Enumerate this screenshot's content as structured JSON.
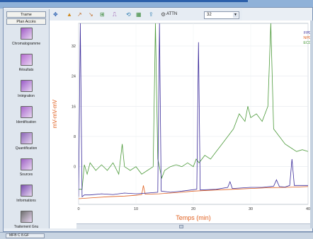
{
  "sidebar": {
    "tabs": [
      "Trame",
      "Plan Accès"
    ],
    "items": [
      {
        "label": "Chromatogramme",
        "icon": "chromatogram-icon",
        "color": "#a05cc6"
      },
      {
        "label": "Résultats",
        "icon": "results-icon",
        "color": "#b56bd1"
      },
      {
        "label": "Intégration",
        "icon": "integration-icon",
        "color": "#9a5ac8"
      },
      {
        "label": "Identification",
        "icon": "identification-icon",
        "color": "#a868cc"
      },
      {
        "label": "Quantification",
        "icon": "quantification-icon",
        "color": "#8a66b6"
      },
      {
        "label": "Sources",
        "icon": "sources-icon",
        "color": "#9d60c4"
      },
      {
        "label": "Informations",
        "icon": "information-icon",
        "color": "#7a4fb0"
      },
      {
        "label": "Traitement Gnu",
        "icon": "clock-icon",
        "color": "#6f6f6f"
      }
    ]
  },
  "toolbar": {
    "attn_label": "ATTN",
    "attn_value": "32",
    "icons": [
      "move-icon",
      "peak-icon",
      "zoom-in-icon",
      "zoom-out-icon",
      "baseline-icon",
      "integrate-icon",
      "reset-icon",
      "overlay-icon",
      "export-icon",
      "settings-icon"
    ]
  },
  "taskbar": {
    "item_label": "MFB C 8.GF"
  },
  "chart_data": {
    "type": "line",
    "xlabel": "Temps (min)",
    "ylabel": "mV-mV-mV",
    "xlim": [
      0,
      40
    ],
    "ylim": [
      -10,
      38
    ],
    "xticks": [
      "0",
      "10",
      "20",
      "30",
      "40"
    ],
    "yticks": [
      "0",
      "8",
      "16",
      "24",
      "32"
    ],
    "grid": true,
    "legend_position": "top-right",
    "series": [
      {
        "name": "FPD",
        "color": "#3a2a9a",
        "points": [
          [
            0,
            -8
          ],
          [
            0.3,
            38
          ],
          [
            0.6,
            -8
          ],
          [
            1,
            -7.5
          ],
          [
            2,
            -7.5
          ],
          [
            4,
            -7.2
          ],
          [
            6,
            -7.4
          ],
          [
            8,
            -7
          ],
          [
            10,
            -7.2
          ],
          [
            12,
            -7
          ],
          [
            13.8,
            -6.8
          ],
          [
            14.1,
            38
          ],
          [
            14.4,
            -6.5
          ],
          [
            16,
            -6.8
          ],
          [
            18,
            -6.5
          ],
          [
            20.6,
            -6
          ],
          [
            20.9,
            33
          ],
          [
            21.2,
            -6.2
          ],
          [
            24,
            -6
          ],
          [
            26,
            -5.5
          ],
          [
            26.4,
            -4
          ],
          [
            26.8,
            -5.8
          ],
          [
            30,
            -5.5
          ],
          [
            32,
            -5.5
          ],
          [
            34,
            -5.2
          ],
          [
            34.5,
            -3.5
          ],
          [
            35,
            -5.3
          ],
          [
            36,
            -5.4
          ],
          [
            36.8,
            -5
          ],
          [
            37.2,
            2
          ],
          [
            37.6,
            -5
          ],
          [
            38.5,
            -5
          ],
          [
            40,
            -5
          ]
        ]
      },
      {
        "name": "NPD",
        "color": "#e06020",
        "points": [
          [
            0,
            -8.5
          ],
          [
            2,
            -8.3
          ],
          [
            5,
            -8
          ],
          [
            8,
            -7.8
          ],
          [
            10,
            -7.6
          ],
          [
            11,
            -7.4
          ],
          [
            11.3,
            -5
          ],
          [
            11.6,
            -7.3
          ],
          [
            14,
            -7.2
          ],
          [
            16,
            -7
          ],
          [
            18,
            -6.8
          ],
          [
            20,
            -6.5
          ],
          [
            24,
            -6.2
          ],
          [
            27,
            -6
          ],
          [
            30,
            -5.8
          ],
          [
            33,
            -5.6
          ],
          [
            36,
            -5.5
          ],
          [
            38,
            -5.4
          ],
          [
            40,
            -5.3
          ]
        ]
      },
      {
        "name": "ECD",
        "color": "#4c9a3a",
        "points": [
          [
            0,
            -6
          ],
          [
            0.6,
            -6
          ],
          [
            1,
            0.5
          ],
          [
            1.5,
            -2
          ],
          [
            2,
            1
          ],
          [
            3,
            -1
          ],
          [
            4,
            0.5
          ],
          [
            5,
            -1
          ],
          [
            6,
            1
          ],
          [
            7,
            -2
          ],
          [
            7.6,
            6
          ],
          [
            8,
            0
          ],
          [
            9,
            -1
          ],
          [
            10,
            0
          ],
          [
            11,
            -2
          ],
          [
            12,
            -1
          ],
          [
            13,
            0
          ],
          [
            13.4,
            38
          ],
          [
            13.8,
            2
          ],
          [
            14.5,
            -3
          ],
          [
            15,
            -1
          ],
          [
            16,
            0
          ],
          [
            17,
            0.5
          ],
          [
            18,
            0
          ],
          [
            19,
            1
          ],
          [
            20,
            0
          ],
          [
            20.5,
            2
          ],
          [
            21,
            1
          ],
          [
            22,
            3
          ],
          [
            23,
            2
          ],
          [
            24,
            4
          ],
          [
            25,
            6
          ],
          [
            26,
            8
          ],
          [
            27,
            10
          ],
          [
            28,
            14
          ],
          [
            29,
            12
          ],
          [
            29.5,
            16
          ],
          [
            30,
            13
          ],
          [
            31,
            14
          ],
          [
            32,
            12
          ],
          [
            33,
            16
          ],
          [
            33.5,
            38
          ],
          [
            34,
            10
          ],
          [
            35,
            8
          ],
          [
            36,
            6
          ],
          [
            37,
            5
          ],
          [
            38,
            4
          ],
          [
            39,
            4.5
          ],
          [
            40,
            4
          ]
        ]
      }
    ]
  }
}
